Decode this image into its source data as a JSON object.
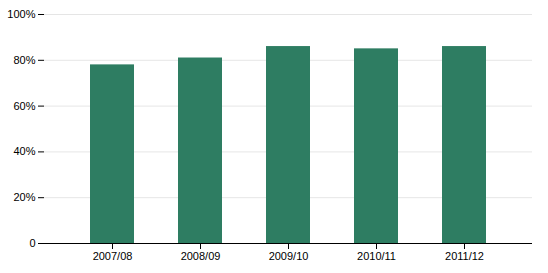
{
  "chart_data": {
    "type": "bar",
    "categories": [
      "2007/08",
      "2008/09",
      "2009/10",
      "2010/11",
      "2011/12"
    ],
    "values": [
      0.78,
      0.81,
      0.86,
      0.85,
      0.86
    ],
    "color": "#2e7d62",
    "ylim": [
      0,
      1.0
    ],
    "yticks": [
      0,
      {
        "value": 0.2,
        "label": "20%"
      },
      {
        "value": 0.4,
        "label": "40%"
      },
      {
        "value": 0.6,
        "label": "60%"
      },
      {
        "value": 0.8,
        "label": "80%"
      },
      {
        "value": 1.0,
        "label": "100%"
      }
    ],
    "grid": true
  }
}
